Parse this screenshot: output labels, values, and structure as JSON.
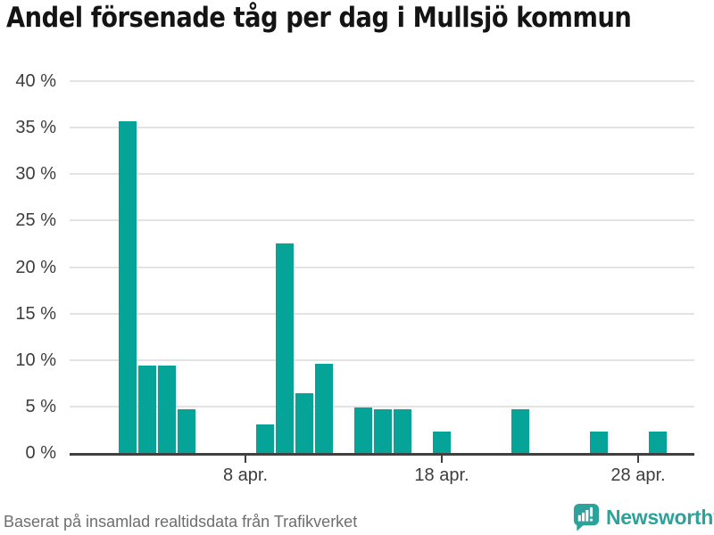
{
  "title": "Andel försenade tåg per dag i Mullsjö kommun",
  "footer": {
    "source": "Baserat på insamlad realtidsdata från Trafikverket",
    "brand": "Newsworthy"
  },
  "colors": {
    "bar": "#06a398",
    "grid": "#e3e3e3",
    "axis": "#404040",
    "title": "#141414",
    "tick_label": "#3d3d3d",
    "source_text": "#6e6e6e",
    "brand": "#2ca29b"
  },
  "chart_data": {
    "type": "bar",
    "title": "Andel försenade tåg per dag i Mullsjö kommun",
    "xlabel": "",
    "ylabel": "",
    "unit": "%",
    "ylim": [
      0,
      40
    ],
    "grid": true,
    "legend": false,
    "y_ticks": [
      40,
      35,
      30,
      25,
      20,
      15,
      10,
      5,
      0
    ],
    "y_tick_suffix": " %",
    "x_ticks": [
      {
        "label": "8 apr.",
        "day": 8
      },
      {
        "label": "18 apr.",
        "day": 18
      },
      {
        "label": "28 apr.",
        "day": 28
      }
    ],
    "points": [
      {
        "label": "2 apr.",
        "day": 2,
        "value": 35.7
      },
      {
        "label": "3 apr.",
        "day": 3,
        "value": 9.4
      },
      {
        "label": "4 apr.",
        "day": 4,
        "value": 9.4
      },
      {
        "label": "5 apr.",
        "day": 5,
        "value": 4.7
      },
      {
        "label": "9 apr.",
        "day": 9,
        "value": 3.1
      },
      {
        "label": "10 apr.",
        "day": 10,
        "value": 22.5
      },
      {
        "label": "11 apr.",
        "day": 11,
        "value": 6.4
      },
      {
        "label": "12 apr.",
        "day": 12,
        "value": 9.6
      },
      {
        "label": "14 apr.",
        "day": 14,
        "value": 4.9
      },
      {
        "label": "15 apr.",
        "day": 15,
        "value": 4.7
      },
      {
        "label": "16 apr.",
        "day": 16,
        "value": 4.7
      },
      {
        "label": "18 apr.",
        "day": 18,
        "value": 2.3
      },
      {
        "label": "22 apr.",
        "day": 22,
        "value": 4.7
      },
      {
        "label": "26 apr.",
        "day": 26,
        "value": 2.3
      },
      {
        "label": "29 apr.",
        "day": 29,
        "value": 2.3
      }
    ]
  }
}
